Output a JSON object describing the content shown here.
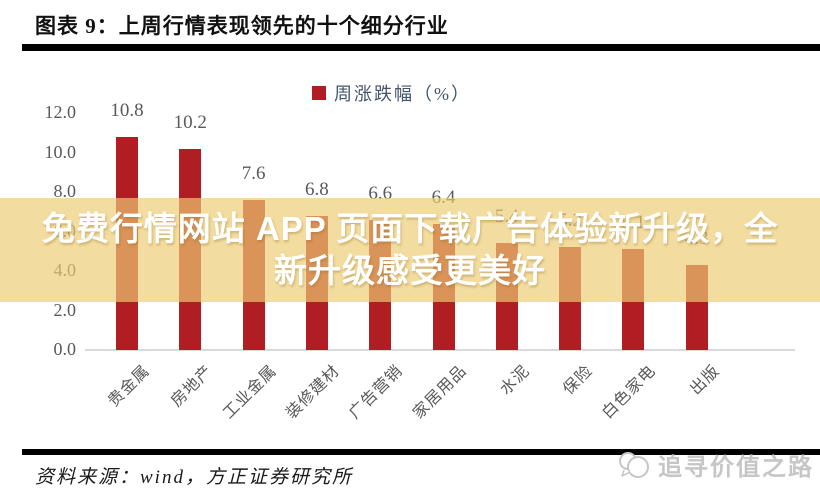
{
  "header": {
    "title": "图表 9：上周行情表现领先的十个细分行业"
  },
  "legend": {
    "label": "周涨跌幅（%）",
    "swatch_color": "#B01E23",
    "label_color": "#44546A"
  },
  "chart_data": {
    "type": "bar",
    "title": "上周行情表现领先的十个细分行业",
    "legend": "周涨跌幅（%）",
    "categories": [
      "贵金属",
      "房地产",
      "工业金属",
      "装修建材",
      "广告营销",
      "家居用品",
      "水泥",
      "保险",
      "白色家电",
      "出版"
    ],
    "values": [
      10.8,
      10.2,
      7.6,
      6.8,
      6.6,
      6.4,
      5.4,
      5.2,
      5.1,
      4.3
    ],
    "value_labels": [
      "10.8",
      "10.2",
      "7.6",
      "6.8",
      "6.6",
      "6.4",
      "5.4",
      "5.2",
      "5.1",
      "4.3"
    ],
    "xlabel": "",
    "ylabel": "",
    "ylim": [
      0,
      12
    ],
    "yticks": [
      0,
      2,
      4,
      6,
      8,
      10,
      12
    ],
    "ytick_labels": [
      "0.0",
      "2.0",
      "4.0",
      "6.0",
      "8.0",
      "10.0",
      "12.0"
    ],
    "grid": false,
    "legend_position": "top-center",
    "bar_color": "#B01E23",
    "axis_text_color": "#595959",
    "value_label_color": "#595959",
    "baseline_color": "#D9D9D9"
  },
  "overlay": {
    "line1": "免费行情网站 APP 页面下载广告体验新升级，全",
    "line2": "新升级感受更美好",
    "band_color": "#EDCB71",
    "text_color": "#FFFFFF"
  },
  "footer": {
    "source": "资料来源：wind，方正证券研究所",
    "watermark": "追寻价值之路"
  }
}
